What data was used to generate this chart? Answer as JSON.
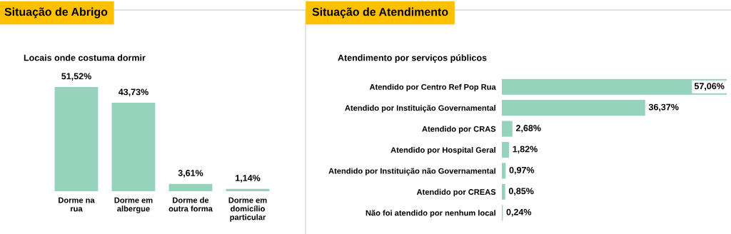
{
  "chart_data": [
    {
      "type": "bar",
      "title": "Situação de Abrigo",
      "subtitle": "Locais onde costuma dormir",
      "categories": [
        "Dorme na rua",
        "Dorme em albergue",
        "Dorme de outra forma",
        "Dorme em domicílio particular"
      ],
      "values": [
        51.52,
        43.73,
        3.61,
        1.14
      ],
      "color": "#96d3bd",
      "value_labels": [
        "51,52%",
        "43,73%",
        "3,61%",
        "1,14%"
      ]
    },
    {
      "type": "bar",
      "orientation": "horizontal",
      "title": "Situação de Atendimento",
      "subtitle": "Atendimento por serviços públicos",
      "categories": [
        "Atendido por Centro Ref Pop Rua",
        "Atendido por Instituição Governamental",
        "Atendido por CRAS",
        "Atendido por Hospital Geral",
        "Atendido por Instituição não Governamental",
        "Atendido por CREAS",
        "Não foi atendido por nenhum local"
      ],
      "values": [
        57.06,
        36.37,
        2.68,
        1.82,
        0.97,
        0.85,
        0.24
      ],
      "color": "#96d3bd",
      "value_labels": [
        "57,06%",
        "36,37%",
        "2,68%",
        "1,82%",
        "0,97%",
        "0,85%",
        "0,24%"
      ]
    }
  ]
}
